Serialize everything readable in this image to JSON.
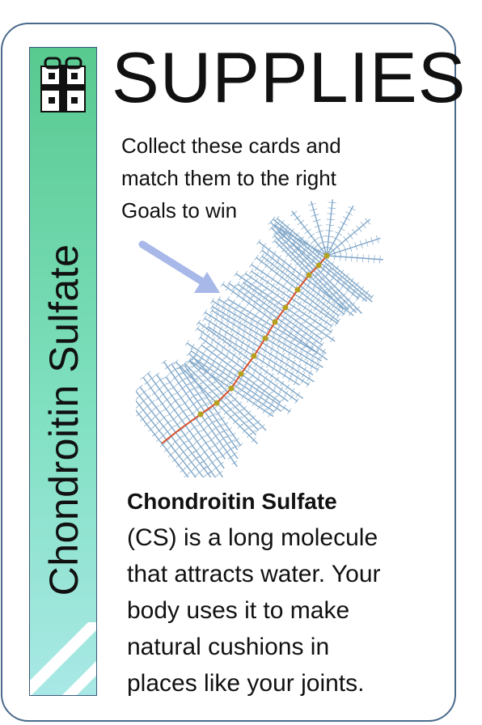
{
  "card": {
    "category": "SUPPLIES",
    "name": "Chondroitin Sulfate",
    "icon": "gift-icon",
    "instructions": [
      "Collect these cards and",
      "match them  to the right",
      "Goals to win"
    ],
    "description": {
      "name": "Chondroitin Sulfate",
      "lines": [
        "(CS) is a long molecule",
        "that attracts water. Your",
        "body uses it to make",
        "natural cushions in",
        "places like your joints."
      ]
    },
    "colors": {
      "border": "#4a6a8c",
      "sidebar_top": "#58c98f",
      "sidebar_bottom": "#a9e8e6",
      "arrow": "#a8b8e8",
      "molecule_branch": "#7fa6c8",
      "backbone": "#d9502a",
      "node": "#b5a020"
    }
  }
}
